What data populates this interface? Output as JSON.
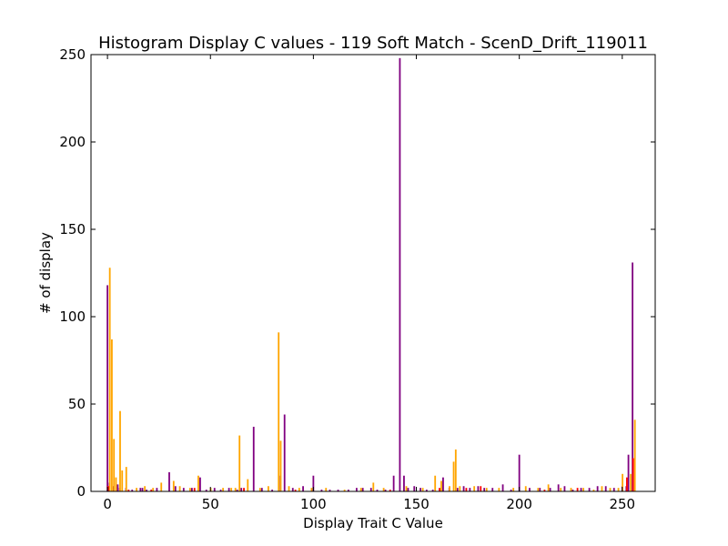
{
  "colors": {
    "series_primary": "#800080",
    "series_secondary": "#ffa500",
    "series_tertiary": "#ff0000"
  },
  "chart_data": {
    "type": "bar",
    "title": "Histogram Display C values - 119 Soft Match - ScenD_Drift_119011",
    "xlabel": "Display Trait C Value",
    "ylabel": "# of display",
    "xlim": [
      -8,
      266
    ],
    "ylim": [
      0,
      250
    ],
    "xticks": [
      0,
      50,
      100,
      150,
      200,
      250
    ],
    "yticks": [
      0,
      50,
      100,
      150,
      200,
      250
    ],
    "grid": false,
    "series": [
      {
        "color": "#800080",
        "x": [
          0,
          1,
          3,
          5,
          6,
          9,
          12,
          16,
          17,
          19,
          24,
          30,
          33,
          37,
          41,
          45,
          48,
          52,
          55,
          59,
          63,
          65,
          71,
          75,
          80,
          84,
          86,
          90,
          95,
          100,
          104,
          108,
          112,
          117,
          121,
          124,
          128,
          131,
          135,
          139,
          142,
          144,
          146,
          149,
          152,
          155,
          158,
          163,
          166,
          170,
          173,
          176,
          180,
          183,
          187,
          192,
          196,
          200,
          205,
          210,
          215,
          219,
          222,
          226,
          230,
          234,
          238,
          242,
          246,
          250,
          252,
          253,
          255
        ],
        "values": [
          118,
          5,
          3,
          4,
          2,
          2,
          1,
          2,
          2,
          1,
          2,
          11,
          3,
          2,
          2,
          8,
          1,
          2,
          1,
          2,
          1,
          2,
          37,
          2,
          1,
          9,
          44,
          2,
          3,
          9,
          1,
          1,
          1,
          1,
          2,
          2,
          2,
          1,
          1,
          9,
          248,
          9,
          2,
          3,
          2,
          1,
          1,
          8,
          2,
          2,
          3,
          2,
          3,
          2,
          2,
          4,
          1,
          21,
          2,
          2,
          2,
          4,
          3,
          1,
          2,
          2,
          3,
          3,
          2,
          3,
          3,
          21,
          131
        ]
      },
      {
        "color": "#ffa500",
        "x": [
          1,
          2,
          3,
          4,
          6,
          7,
          9,
          14,
          18,
          22,
          26,
          32,
          35,
          40,
          44,
          50,
          56,
          60,
          62,
          64,
          68,
          74,
          78,
          83,
          84,
          88,
          93,
          99,
          106,
          115,
          123,
          129,
          134,
          145,
          153,
          159,
          162,
          166,
          168,
          169,
          171,
          178,
          184,
          190,
          197,
          203,
          209,
          214,
          220,
          225,
          231,
          236,
          240,
          244,
          248,
          250,
          254,
          256
        ],
        "values": [
          128,
          87,
          30,
          8,
          46,
          12,
          14,
          2,
          3,
          2,
          5,
          6,
          3,
          2,
          9,
          2,
          2,
          2,
          2,
          32,
          7,
          2,
          3,
          91,
          29,
          3,
          2,
          2,
          2,
          1,
          2,
          5,
          2,
          3,
          2,
          9,
          6,
          3,
          17,
          24,
          3,
          3,
          2,
          2,
          2,
          3,
          2,
          4,
          2,
          2,
          2,
          1,
          3,
          2,
          2,
          10,
          10,
          41
        ]
      },
      {
        "color": "#ff0000",
        "x": [
          0,
          10,
          21,
          42,
          66,
          91,
          137,
          161,
          174,
          181,
          212,
          228,
          252,
          255
        ],
        "values": [
          3,
          1,
          1,
          2,
          2,
          1,
          1,
          2,
          2,
          3,
          1,
          2,
          8,
          19
        ]
      }
    ]
  }
}
